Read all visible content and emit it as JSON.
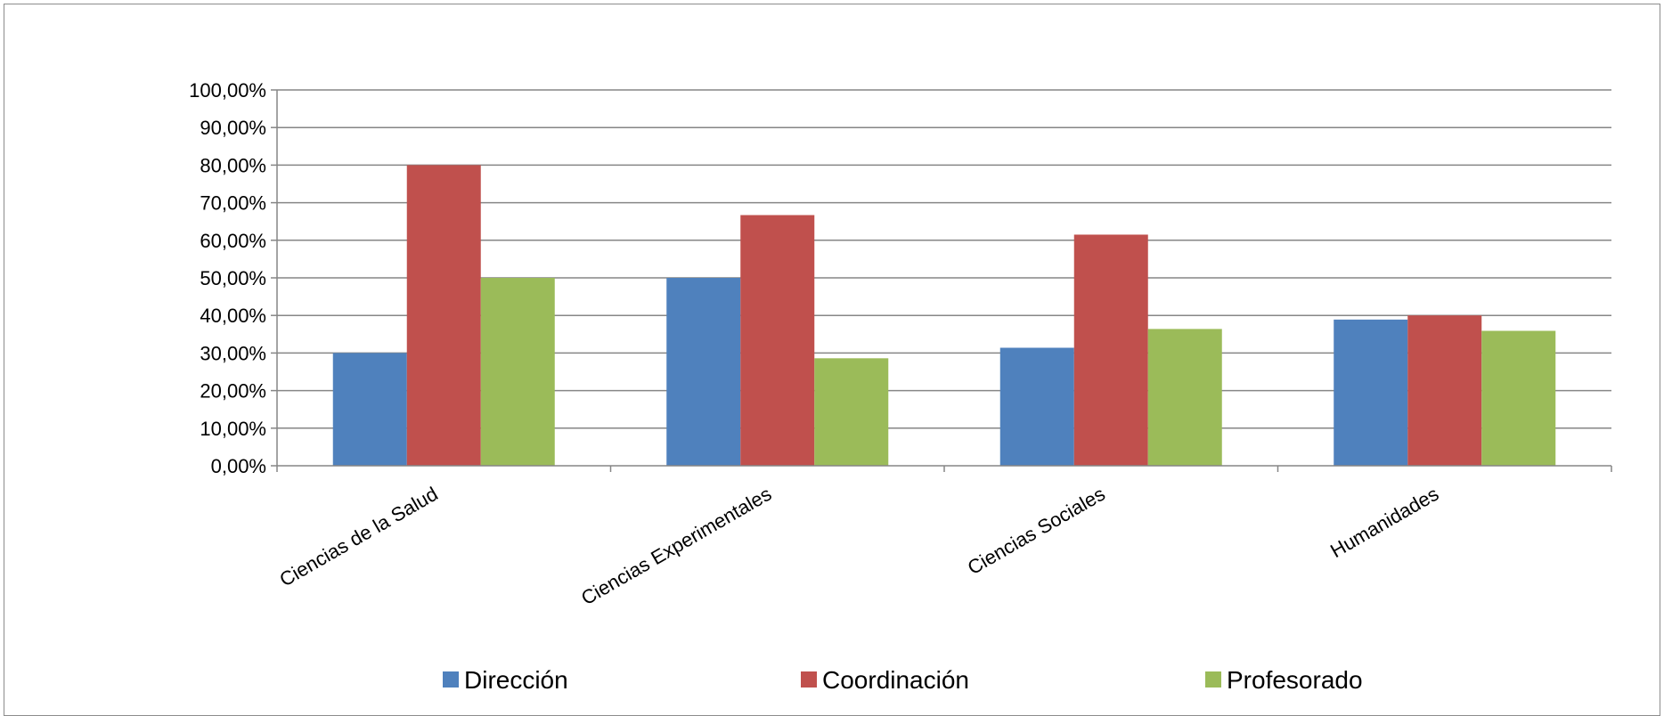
{
  "chart_data": {
    "type": "bar",
    "title": "",
    "xlabel": "",
    "ylabel": "",
    "categories": [
      "Ciencias de la Salud",
      "Ciencias Experimentales",
      "Ciencias Sociales",
      "Humanidades"
    ],
    "series": [
      {
        "name": "Dirección",
        "color": "#4f81bd",
        "values": [
          30.0,
          50.0,
          31.4,
          38.9
        ]
      },
      {
        "name": "Coordinación",
        "color": "#c0504d",
        "values": [
          80.0,
          66.7,
          61.5,
          40.0
        ]
      },
      {
        "name": "Profesorado",
        "color": "#9bbb59",
        "values": [
          50.0,
          28.6,
          36.4,
          35.9
        ]
      }
    ],
    "ylim": [
      0,
      100
    ],
    "yticks": [
      0,
      10,
      20,
      30,
      40,
      50,
      60,
      70,
      80,
      90,
      100
    ],
    "ytick_labels": [
      "0,00%",
      "10,00%",
      "20,00%",
      "30,00%",
      "40,00%",
      "50,00%",
      "60,00%",
      "70,00%",
      "80,00%",
      "90,00%",
      "100,00%"
    ],
    "grid": true,
    "legend": "bottom"
  }
}
